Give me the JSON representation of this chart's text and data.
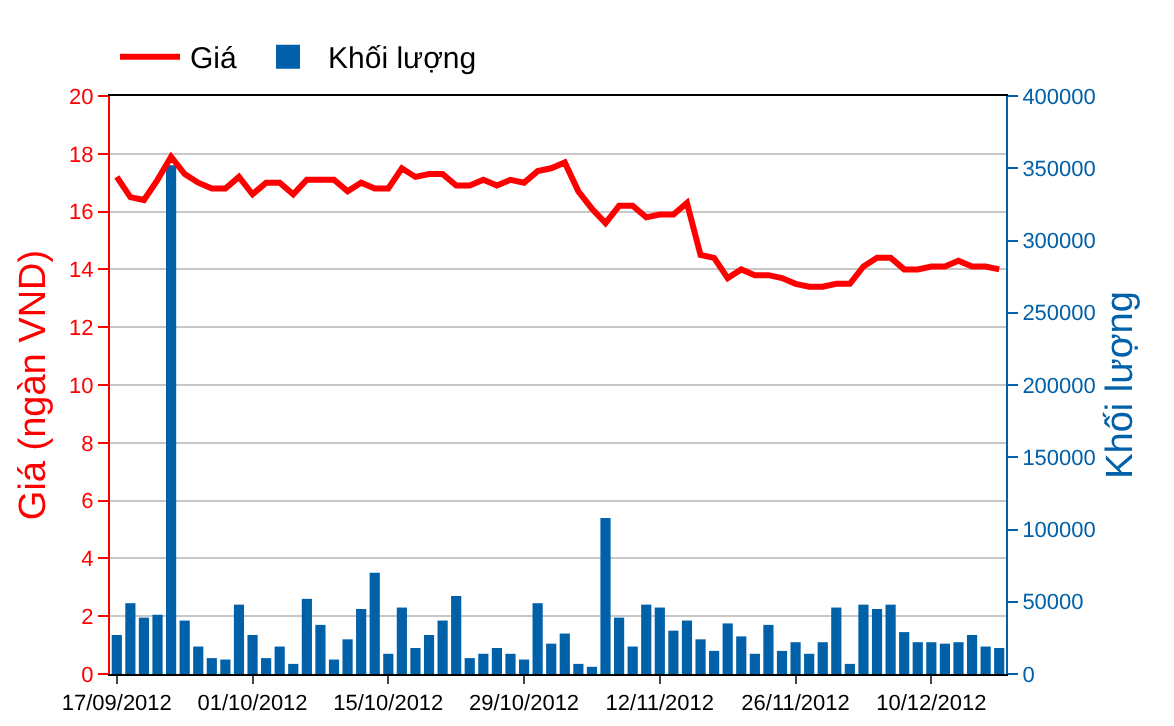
{
  "chart_data": {
    "type": "bar",
    "categories": [
      "17/09/2012",
      null,
      null,
      null,
      null,
      null,
      null,
      null,
      null,
      null,
      "01/10/2012",
      null,
      null,
      null,
      null,
      null,
      null,
      null,
      null,
      null,
      "15/10/2012",
      null,
      null,
      null,
      null,
      null,
      null,
      null,
      null,
      null,
      "29/10/2012",
      null,
      null,
      null,
      null,
      null,
      null,
      null,
      null,
      null,
      "12/11/2012",
      null,
      null,
      null,
      null,
      null,
      null,
      null,
      null,
      null,
      "26/11/2012",
      null,
      null,
      null,
      null,
      null,
      null,
      null,
      null,
      null,
      "10/12/2012",
      null,
      null,
      null,
      null,
      null
    ],
    "series": [
      {
        "name": "Khối lượng",
        "axis": "y2",
        "color": "#0060a8",
        "values": [
          27000,
          49000,
          39000,
          41000,
          352000,
          37000,
          19000,
          11000,
          10000,
          48000,
          27000,
          11000,
          19000,
          7000,
          52000,
          34000,
          10000,
          24000,
          45000,
          70000,
          14000,
          46000,
          18000,
          27000,
          37000,
          54000,
          11000,
          14000,
          18000,
          14000,
          10000,
          49000,
          21000,
          28000,
          7000,
          5000,
          108000,
          39000,
          19000,
          48000,
          46000,
          30000,
          37000,
          24000,
          16000,
          35000,
          26000,
          14000,
          34000,
          16000,
          22000,
          14000,
          22000,
          46000,
          7000,
          48000,
          45000,
          48000,
          29000,
          22000,
          22000,
          21000,
          22000,
          27000,
          19000,
          18000
        ]
      },
      {
        "name": "Giá",
        "type": "line",
        "color": "#ff0000",
        "values": [
          17.2,
          16.5,
          16.4,
          17.1,
          17.9,
          17.3,
          17.0,
          16.8,
          16.8,
          17.2,
          16.6,
          17.0,
          17.0,
          16.6,
          17.1,
          17.1,
          17.1,
          16.7,
          17.0,
          16.8,
          16.8,
          17.5,
          17.2,
          17.3,
          17.3,
          16.9,
          16.9,
          17.1,
          16.9,
          17.1,
          17.0,
          17.4,
          17.5,
          17.7,
          16.7,
          16.1,
          15.6,
          16.2,
          16.2,
          15.8,
          15.9,
          15.9,
          16.3,
          14.5,
          14.4,
          13.7,
          14.0,
          13.8,
          13.8,
          13.7,
          13.5,
          13.4,
          13.4,
          13.5,
          13.5,
          14.1,
          14.4,
          14.4,
          14.0,
          14.0,
          14.1,
          14.1,
          14.3,
          14.1,
          14.1,
          14.0
        ]
      }
    ],
    "ylabel": "Giá (ngàn VND)",
    "y2label": "Khối lượng",
    "ylim": [
      0,
      20
    ],
    "yticks": [
      0,
      2,
      4,
      6,
      8,
      10,
      12,
      14,
      16,
      18,
      20
    ],
    "y2lim": [
      0,
      400000
    ],
    "y2ticks": [
      0,
      50000,
      100000,
      150000,
      200000,
      250000,
      300000,
      350000,
      400000
    ],
    "grid": "y",
    "legend": "top left"
  }
}
